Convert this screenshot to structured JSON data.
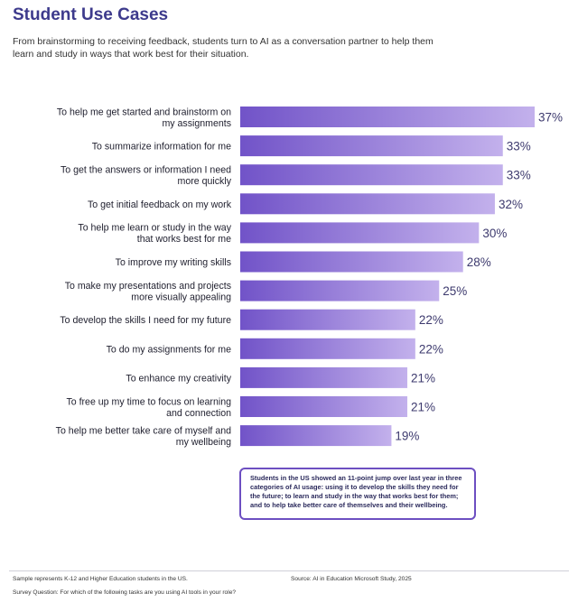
{
  "header": {
    "title": "Student Use Cases",
    "subtitle": "From brainstorming to receiving feedback, students turn to AI as a conversation partner to help them learn and study in ways that work best for their situation."
  },
  "chart_data": {
    "type": "bar",
    "orientation": "horizontal",
    "categories": [
      [
        "To help me get started and brainstorm on",
        "my assignments"
      ],
      [
        "To summarize information for me"
      ],
      [
        "To get the answers or information I need",
        "more quickly"
      ],
      [
        "To get initial feedback on my work"
      ],
      [
        "To help me learn or study in the way",
        "that works best for me"
      ],
      [
        "To improve my writing skills"
      ],
      [
        "To make my presentations and projects",
        "more visually appealing"
      ],
      [
        "To develop the skills I need for my future"
      ],
      [
        "To do my assignments for me"
      ],
      [
        "To enhance my creativity"
      ],
      [
        "To free up my time to focus on learning",
        "and connection"
      ],
      [
        "To help me better take care of myself and",
        "my wellbeing"
      ]
    ],
    "values": [
      37,
      33,
      33,
      32,
      30,
      28,
      25,
      22,
      22,
      21,
      21,
      19
    ],
    "value_labels": [
      "37%",
      "33%",
      "33%",
      "32%",
      "30%",
      "28%",
      "25%",
      "22%",
      "22%",
      "21%",
      "21%",
      "19%"
    ],
    "xlim": [
      0,
      37
    ],
    "colors": {
      "bar_start": "#7153c8",
      "bar_end": "#c3b1ec",
      "value_text": "#3d3a6e"
    }
  },
  "callout": {
    "text": "Students in the US showed an 11-point jump over last year in three categories of AI usage: using it to develop the skills they need for the future; to learn and study in the way that works best for them; and to help take better care of themselves and their wellbeing."
  },
  "footer": {
    "sample": "Sample represents K-12 and Higher Education students in the US.",
    "source": "Source: AI in Education Microsoft Study, 2025",
    "question": "Survey Question: For which of the following tasks are you using AI tools in your role?"
  }
}
